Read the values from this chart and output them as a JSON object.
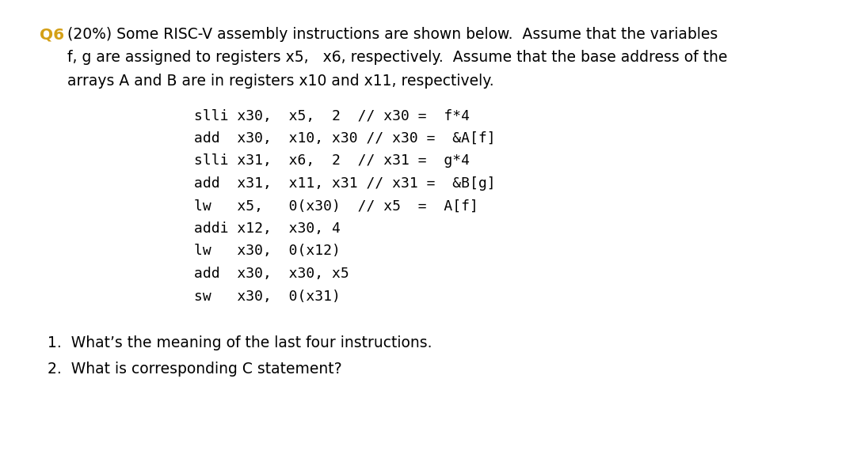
{
  "bg_color": "#ffffff",
  "q_label": "Q6",
  "q_label_color": "#d4a017",
  "header_line1": " (20%) Some RISC-V assembly instructions are shown below.  Assume that the variables",
  "header_line2": "     f, g are assigned to registers x5,   x6, respectively.  Assume that the base address of the",
  "header_line3": "     arrays A and B are in registers x10 and x11, respectively.",
  "code_lines": [
    "slli x30,  x5,  2  // x30 =  f*4",
    "add  x30,  x10, x30 // x30 =  &A[f]",
    "slli x31,  x6,  2  // x31 =  g*4",
    "add  x31,  x11, x31 // x31 =  &B[g]",
    "lw   x5,   0(x30)  // x5  =  A[f]",
    "addi x12,  x30, 4",
    "lw   x30,  0(x12)",
    "add  x30,  x30, x5",
    "sw   x30,  0(x31)"
  ],
  "q1": "1.  What’s the meaning of the last four instructions.",
  "q2": "2.  What is corresponding C statement?",
  "header_fontsize": 13.5,
  "q_label_fontsize": 14.5,
  "code_fontsize": 13.0,
  "question_fontsize": 13.5
}
